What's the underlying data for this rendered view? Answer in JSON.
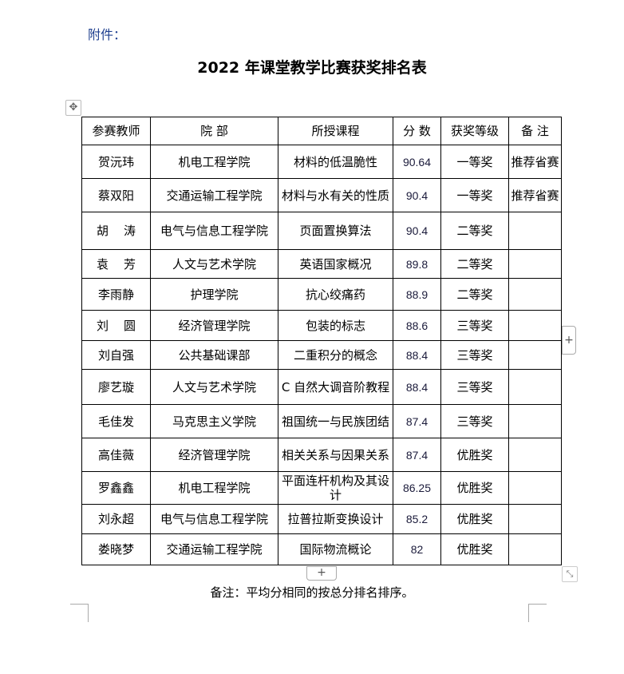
{
  "attachment_label": "附件：",
  "title": "2022 年课堂教学比赛获奖排名表",
  "icons": {
    "move": "move-icon",
    "add_row": "plus-icon",
    "add_col": "plus-icon",
    "resize": "resize-icon"
  },
  "table": {
    "headers": [
      "参赛教师",
      "院  部",
      "所授课程",
      "分  数",
      "获奖等级",
      "备  注"
    ],
    "rows": [
      [
        "贺沅玮",
        "机电工程学院",
        "材料的低温脆性",
        "90.64",
        "一等奖",
        "推荐省赛"
      ],
      [
        "蔡双阳",
        "交通运输工程学院",
        "材料与水有关的性质",
        "90.4",
        "一等奖",
        "推荐省赛"
      ],
      [
        "胡    涛",
        "电气与信息工程学院",
        "页面置换算法",
        "90.4",
        "二等奖",
        ""
      ],
      [
        "袁    芳",
        "人文与艺术学院",
        "英语国家概况",
        "89.8",
        "二等奖",
        ""
      ],
      [
        "李雨静",
        "护理学院",
        "抗心绞痛药",
        "88.9",
        "二等奖",
        ""
      ],
      [
        "刘    圆",
        "经济管理学院",
        "包装的标志",
        "88.6",
        "三等奖",
        ""
      ],
      [
        "刘自强",
        "公共基础课部",
        "二重积分的概念",
        "88.4",
        "三等奖",
        ""
      ],
      [
        "廖艺璇",
        "人文与艺术学院",
        "C 自然大调音阶教程",
        "88.4",
        "三等奖",
        ""
      ],
      [
        "毛佳发",
        "马克思主义学院",
        "祖国统一与民族团结",
        "87.4",
        "三等奖",
        ""
      ],
      [
        "高佳薇",
        "经济管理学院",
        "相关关系与因果关系",
        "87.4",
        "优胜奖",
        ""
      ],
      [
        "罗鑫鑫",
        "机电工程学院",
        "平面连杆机构及其设计",
        "86.25",
        "优胜奖",
        ""
      ],
      [
        "刘永超",
        "电气与信息工程学院",
        "拉普拉斯变换设计",
        "85.2",
        "优胜奖",
        ""
      ],
      [
        "娄晓梦",
        "交通运输工程学院",
        "国际物流概论",
        "82",
        "优胜奖",
        ""
      ]
    ]
  },
  "note": "备注：平均分相同的按总分排名排序。"
}
